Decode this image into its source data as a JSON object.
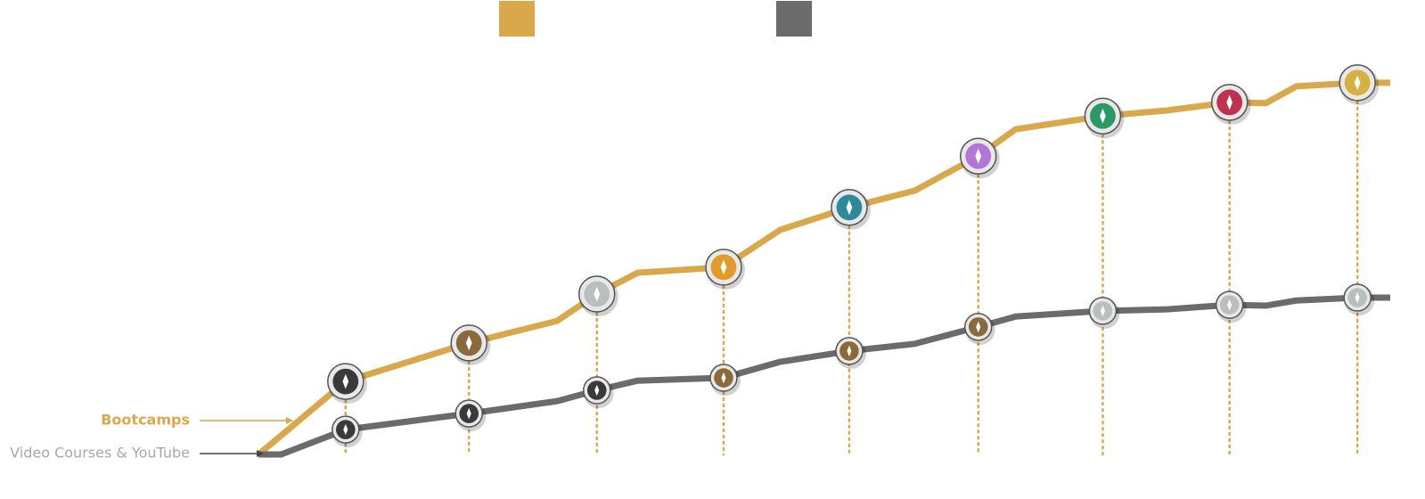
{
  "chart_data": {
    "type": "line",
    "x": [
      0,
      2,
      7.7,
      18.6,
      26.4,
      29.9,
      33.5,
      41.1,
      46.1,
      52.2,
      58,
      63.6,
      66.9,
      74.6,
      80.3,
      85.8,
      89,
      91.7,
      97.1,
      100
    ],
    "series": [
      {
        "name": "Bootcamps",
        "color": "#d9a84a",
        "values": [
          0,
          4.7,
          18.2,
          27.8,
          33.3,
          40,
          45.3,
          46.7,
          56,
          61.6,
          65.8,
          74.4,
          81.1,
          84.4,
          85.8,
          87.8,
          87.6,
          91.8,
          92.7,
          92.7
        ]
      },
      {
        "name": "Video Courses & YouTube",
        "color": "#6b6b6b",
        "values": [
          0,
          0,
          6.2,
          10.2,
          13.3,
          16,
          18.4,
          19.1,
          23.1,
          25.8,
          27.6,
          31.8,
          34.4,
          35.8,
          36.2,
          37.3,
          37.1,
          38.4,
          39.1,
          39.1
        ]
      }
    ],
    "xlim": [
      0,
      100
    ],
    "ylim": [
      0,
      100
    ]
  }
}
